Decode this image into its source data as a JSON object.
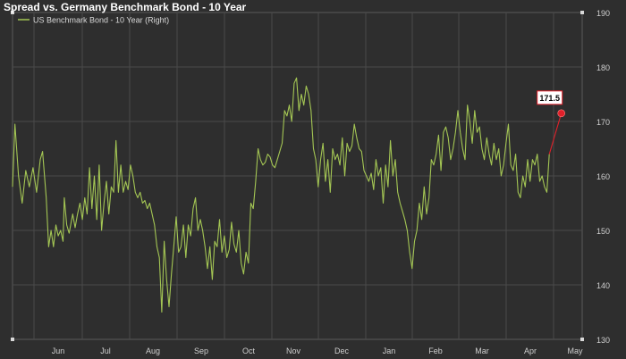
{
  "chart_data": {
    "type": "line",
    "title": "Spread vs. Germany Benchmark Bond - 10 Year",
    "legend_position": "top-left",
    "grid": true,
    "y_axis_side": "right",
    "ylim": [
      130,
      190
    ],
    "yticks": [
      130,
      140,
      150,
      160,
      170,
      180,
      190
    ],
    "xticks": [
      "Jun",
      "Jul",
      "Aug",
      "Sep",
      "Oct",
      "Nov",
      "Dec",
      "Jan",
      "Feb",
      "Mar",
      "Apr",
      "May"
    ],
    "last_value_label": "171.5",
    "series": [
      {
        "name": "US Benchmark Bond - 10 Year (Right)",
        "color": "#a4c654",
        "marker_color": "#e0202a",
        "points": [
          [
            0,
            158
          ],
          [
            0.1,
            169.5
          ],
          [
            0.25,
            160
          ],
          [
            0.4,
            155
          ],
          [
            0.55,
            161
          ],
          [
            0.7,
            158
          ],
          [
            0.85,
            161.5
          ],
          [
            1.0,
            157
          ],
          [
            1.15,
            163
          ],
          [
            1.25,
            164.5
          ],
          [
            1.4,
            156
          ],
          [
            1.5,
            147
          ],
          [
            1.6,
            150
          ],
          [
            1.7,
            147
          ],
          [
            1.8,
            151
          ],
          [
            1.9,
            149
          ],
          [
            2.0,
            150
          ],
          [
            2.1,
            148
          ],
          [
            2.15,
            156
          ],
          [
            2.25,
            151
          ],
          [
            2.35,
            149.5
          ],
          [
            2.5,
            153
          ],
          [
            2.6,
            150.5
          ],
          [
            2.7,
            153
          ],
          [
            2.8,
            155
          ],
          [
            2.9,
            152
          ],
          [
            3.0,
            156
          ],
          [
            3.1,
            153
          ],
          [
            3.2,
            161.5
          ],
          [
            3.3,
            154
          ],
          [
            3.4,
            160
          ],
          [
            3.5,
            152
          ],
          [
            3.6,
            162
          ],
          [
            3.7,
            150
          ],
          [
            3.8,
            155
          ],
          [
            3.9,
            159
          ],
          [
            4.0,
            153
          ],
          [
            4.1,
            158
          ],
          [
            4.2,
            157
          ],
          [
            4.3,
            166.5
          ],
          [
            4.4,
            157
          ],
          [
            4.5,
            162
          ],
          [
            4.6,
            157
          ],
          [
            4.7,
            159
          ],
          [
            4.8,
            157.5
          ],
          [
            4.9,
            162
          ],
          [
            5.0,
            160
          ],
          [
            5.1,
            157
          ],
          [
            5.2,
            156
          ],
          [
            5.3,
            157
          ],
          [
            5.4,
            155
          ],
          [
            5.5,
            155.5
          ],
          [
            5.6,
            154
          ],
          [
            5.7,
            155
          ],
          [
            5.8,
            153
          ],
          [
            5.9,
            151
          ],
          [
            6.0,
            147
          ],
          [
            6.1,
            145
          ],
          [
            6.2,
            135
          ],
          [
            6.3,
            148
          ],
          [
            6.4,
            141
          ],
          [
            6.5,
            136
          ],
          [
            6.6,
            142
          ],
          [
            6.7,
            147
          ],
          [
            6.8,
            152.5
          ],
          [
            6.9,
            146
          ],
          [
            7.0,
            147
          ],
          [
            7.1,
            151
          ],
          [
            7.2,
            145
          ],
          [
            7.3,
            151
          ],
          [
            7.4,
            149
          ],
          [
            7.5,
            154
          ],
          [
            7.6,
            156
          ],
          [
            7.7,
            150
          ],
          [
            7.8,
            152
          ],
          [
            7.9,
            150
          ],
          [
            8.0,
            147
          ],
          [
            8.1,
            143
          ],
          [
            8.2,
            147
          ],
          [
            8.3,
            141
          ],
          [
            8.4,
            148
          ],
          [
            8.5,
            147
          ],
          [
            8.6,
            152
          ],
          [
            8.7,
            146
          ],
          [
            8.8,
            149
          ],
          [
            8.9,
            145
          ],
          [
            9.0,
            146.5
          ],
          [
            9.1,
            151.5
          ],
          [
            9.2,
            147.5
          ],
          [
            9.3,
            146
          ],
          [
            9.4,
            150
          ],
          [
            9.5,
            144
          ],
          [
            9.6,
            142
          ],
          [
            9.7,
            146
          ],
          [
            9.8,
            144
          ],
          [
            9.9,
            155
          ],
          [
            10.0,
            154
          ],
          [
            10.1,
            159
          ],
          [
            10.2,
            165
          ],
          [
            10.3,
            163
          ],
          [
            10.4,
            162
          ],
          [
            10.5,
            162.5
          ],
          [
            10.6,
            164
          ],
          [
            10.7,
            163.5
          ],
          [
            10.8,
            162
          ],
          [
            10.9,
            161.5
          ],
          [
            11.0,
            163
          ],
          [
            11.1,
            164.5
          ],
          [
            11.2,
            166
          ],
          [
            11.3,
            172
          ],
          [
            11.4,
            171
          ],
          [
            11.5,
            173
          ],
          [
            11.6,
            170
          ],
          [
            11.7,
            177
          ],
          [
            11.8,
            178
          ],
          [
            11.9,
            172
          ],
          [
            12.0,
            175
          ],
          [
            12.1,
            173
          ],
          [
            12.2,
            176.5
          ],
          [
            12.3,
            175
          ],
          [
            12.4,
            172
          ],
          [
            12.5,
            165
          ],
          [
            12.6,
            163
          ],
          [
            12.7,
            158
          ],
          [
            12.8,
            163
          ],
          [
            12.9,
            166
          ],
          [
            13.0,
            159
          ],
          [
            13.1,
            163
          ],
          [
            13.2,
            157
          ],
          [
            13.3,
            165
          ],
          [
            13.4,
            163
          ],
          [
            13.5,
            164
          ],
          [
            13.6,
            162
          ],
          [
            13.7,
            167
          ],
          [
            13.8,
            160
          ],
          [
            13.9,
            166
          ],
          [
            14.0,
            164.5
          ],
          [
            14.1,
            165.5
          ],
          [
            14.2,
            169.5
          ],
          [
            14.3,
            167
          ],
          [
            14.4,
            165
          ],
          [
            14.5,
            164.5
          ],
          [
            14.6,
            161
          ],
          [
            14.7,
            160
          ],
          [
            14.8,
            159
          ],
          [
            14.9,
            160.5
          ],
          [
            15.0,
            157.5
          ],
          [
            15.1,
            163
          ],
          [
            15.2,
            160
          ],
          [
            15.3,
            161.5
          ],
          [
            15.4,
            155
          ],
          [
            15.5,
            162
          ],
          [
            15.6,
            158
          ],
          [
            15.7,
            166.5
          ],
          [
            15.8,
            160
          ],
          [
            15.9,
            163
          ],
          [
            16.0,
            157
          ],
          [
            16.1,
            155
          ],
          [
            16.2,
            153.5
          ],
          [
            16.3,
            152
          ],
          [
            16.4,
            150
          ],
          [
            16.5,
            146
          ],
          [
            16.6,
            143
          ],
          [
            16.7,
            148
          ],
          [
            16.8,
            150
          ],
          [
            16.9,
            155
          ],
          [
            17.0,
            152
          ],
          [
            17.1,
            158
          ],
          [
            17.2,
            153
          ],
          [
            17.3,
            156
          ],
          [
            17.4,
            163
          ],
          [
            17.5,
            162
          ],
          [
            17.6,
            164
          ],
          [
            17.7,
            167.5
          ],
          [
            17.8,
            161
          ],
          [
            17.9,
            168
          ],
          [
            18.0,
            169
          ],
          [
            18.1,
            167
          ],
          [
            18.2,
            163
          ],
          [
            18.3,
            165
          ],
          [
            18.4,
            168
          ],
          [
            18.5,
            172
          ],
          [
            18.6,
            168
          ],
          [
            18.7,
            165
          ],
          [
            18.8,
            163
          ],
          [
            18.9,
            173
          ],
          [
            19.0,
            170
          ],
          [
            19.1,
            166
          ],
          [
            19.2,
            172
          ],
          [
            19.3,
            168
          ],
          [
            19.4,
            169
          ],
          [
            19.5,
            165
          ],
          [
            19.6,
            163
          ],
          [
            19.7,
            167
          ],
          [
            19.8,
            164
          ],
          [
            19.9,
            162
          ],
          [
            20.0,
            166
          ],
          [
            20.1,
            163
          ],
          [
            20.2,
            165
          ],
          [
            20.3,
            160
          ],
          [
            20.4,
            162
          ],
          [
            20.5,
            166
          ],
          [
            20.6,
            169.5
          ],
          [
            20.7,
            162
          ],
          [
            20.8,
            161
          ],
          [
            20.9,
            164
          ],
          [
            21.0,
            157
          ],
          [
            21.1,
            156
          ],
          [
            21.2,
            160
          ],
          [
            21.3,
            158
          ],
          [
            21.4,
            163
          ],
          [
            21.5,
            159
          ],
          [
            21.6,
            163
          ],
          [
            21.7,
            162
          ],
          [
            21.8,
            164
          ],
          [
            21.9,
            159
          ],
          [
            22.0,
            160
          ],
          [
            22.1,
            158
          ],
          [
            22.2,
            157
          ],
          [
            22.3,
            164
          ],
          [
            22.8,
            171.5
          ]
        ]
      }
    ]
  }
}
